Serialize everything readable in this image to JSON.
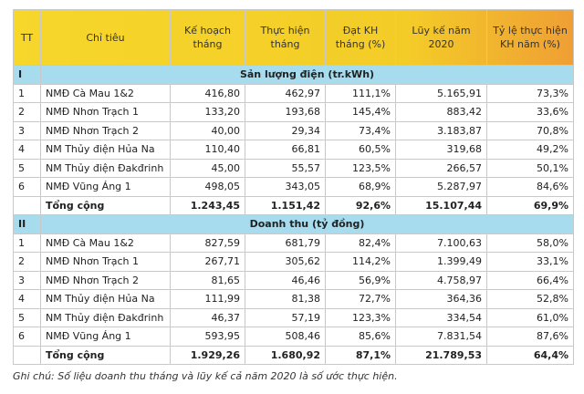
{
  "table": {
    "header": [
      "TT",
      "Chỉ tiêu",
      "Kế hoạch tháng",
      "Thực hiện tháng",
      "Đạt KH tháng (%)",
      "Lũy kế năm 2020",
      "Tỷ lệ thực hiện KH năm (%)"
    ],
    "sections": [
      {
        "number": "I",
        "title": "Sản lượng điện (tr.kWh)",
        "rows": [
          [
            "1",
            "NMĐ Cà Mau 1&2",
            "416,80",
            "462,97",
            "111,1%",
            "5.165,91",
            "73,3%"
          ],
          [
            "2",
            "NMĐ Nhơn Trạch 1",
            "133,20",
            "193,68",
            "145,4%",
            "883,42",
            "33,6%"
          ],
          [
            "3",
            "NMĐ Nhơn Trạch 2",
            "40,00",
            "29,34",
            "73,4%",
            "3.183,87",
            "70,8%"
          ],
          [
            "4",
            "NM Thủy điện Hủa Na",
            "110,40",
            "66,81",
            "60,5%",
            "319,68",
            "49,2%"
          ],
          [
            "5",
            "NM Thủy điện Đakđrinh",
            "45,00",
            "55,57",
            "123,5%",
            "266,57",
            "50,1%"
          ],
          [
            "6",
            "NMĐ Vũng Áng 1",
            "498,05",
            "343,05",
            "68,9%",
            "5.287,97",
            "84,6%"
          ]
        ],
        "total": [
          "Tổng cộng",
          "1.243,45",
          "1.151,42",
          "92,6%",
          "15.107,44",
          "69,9%"
        ]
      },
      {
        "number": "II",
        "title": "Doanh thu (tỷ đồng)",
        "rows": [
          [
            "1",
            "NMĐ Cà Mau 1&2",
            "827,59",
            "681,79",
            "82,4%",
            "7.100,63",
            "58,0%"
          ],
          [
            "2",
            "NMĐ Nhơn Trạch 1",
            "267,71",
            "305,62",
            "114,2%",
            "1.399,49",
            "33,1%"
          ],
          [
            "3",
            "NMĐ Nhơn Trạch 2",
            "81,65",
            "46,46",
            "56,9%",
            "4.758,97",
            "66,4%"
          ],
          [
            "4",
            "NM Thủy điện Hủa Na",
            "111,99",
            "81,38",
            "72,7%",
            "364,36",
            "52,8%"
          ],
          [
            "5",
            "NM Thủy điện Đakđrinh",
            "46,37",
            "57,19",
            "123,3%",
            "334,54",
            "61,0%"
          ],
          [
            "6",
            "NMĐ Vũng Áng 1",
            "593,95",
            "508,46",
            "85,6%",
            "7.831,54",
            "87,6%"
          ]
        ],
        "total": [
          "Tổng cộng",
          "1.929,26",
          "1.680,92",
          "87,1%",
          "21.789,53",
          "64,4%"
        ]
      }
    ],
    "note": "Ghi chú: Số liệu doanh thu tháng và lũy kế cả năm 2020 là số ước thực hiện."
  }
}
